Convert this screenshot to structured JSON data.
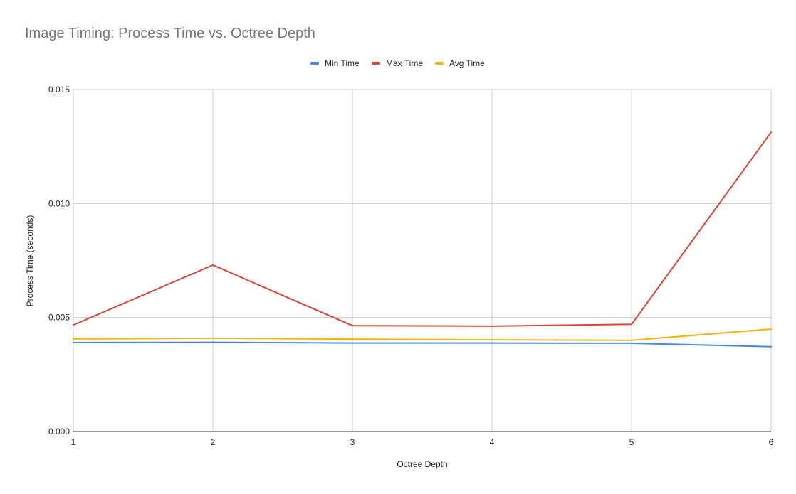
{
  "chart_data": {
    "type": "line",
    "title": "Image Timing: Process Time vs. Octree Depth",
    "xlabel": "Octree Depth",
    "ylabel": "Process Time (seconds)",
    "x": [
      1,
      2,
      3,
      4,
      5,
      6
    ],
    "x_tick_labels": [
      "1",
      "2",
      "3",
      "4",
      "5",
      "6"
    ],
    "ylim": [
      0,
      0.015
    ],
    "y_ticks": [
      0,
      0.005,
      0.01,
      0.015
    ],
    "y_tick_labels": [
      "0.000",
      "0.005",
      "0.010",
      "0.015"
    ],
    "grid": true,
    "legend_position": "top",
    "series": [
      {
        "name": "Min Time",
        "color": "#4285f4",
        "values": [
          0.0039,
          0.00391,
          0.00388,
          0.00388,
          0.00387,
          0.00372
        ]
      },
      {
        "name": "Max Time",
        "color": "#db4437",
        "values": [
          0.00467,
          0.0073,
          0.00464,
          0.00462,
          0.0047,
          0.01313
        ]
      },
      {
        "name": "Avg Time",
        "color": "#f4b400",
        "values": [
          0.00406,
          0.00409,
          0.00405,
          0.00402,
          0.004,
          0.00449
        ]
      }
    ]
  }
}
